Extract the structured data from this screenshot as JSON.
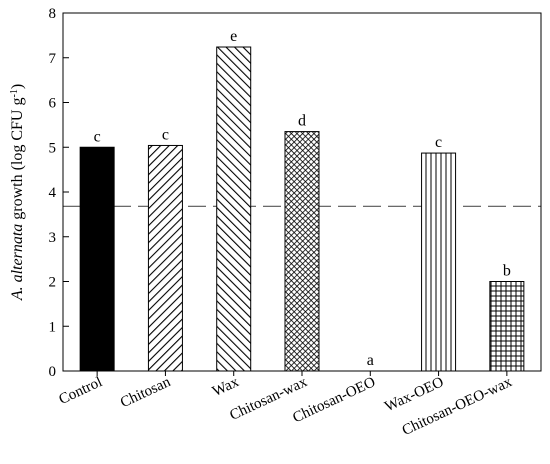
{
  "chart_data": {
    "type": "bar",
    "ylabel_italic": "A. alternata",
    "ylabel_main": " growth (log CFU g",
    "ylabel_sup": "-1",
    "ylabel_end": ")",
    "xlabel": "",
    "ylim": [
      0,
      8
    ],
    "yticks": [
      "0",
      "1",
      "2",
      "3",
      "4",
      "5",
      "6",
      "7",
      "8"
    ],
    "reference_line": 3.68,
    "grid": false,
    "categories": [
      "Control",
      "Chitosan",
      "Wax",
      "Chitosan-wax",
      "Chitosan-OEO",
      "Wax-OEO",
      "Chitosan-OEO-wax"
    ],
    "values": [
      5.0,
      5.04,
      7.24,
      5.35,
      0,
      4.87,
      2.0
    ],
    "significance_letters": [
      "c",
      "c",
      "e",
      "d",
      "a",
      "c",
      "b"
    ],
    "fill_patterns": [
      "solid",
      "diag-right",
      "diag-left",
      "crosshatch-dense",
      "none",
      "vertical",
      "grid"
    ]
  }
}
